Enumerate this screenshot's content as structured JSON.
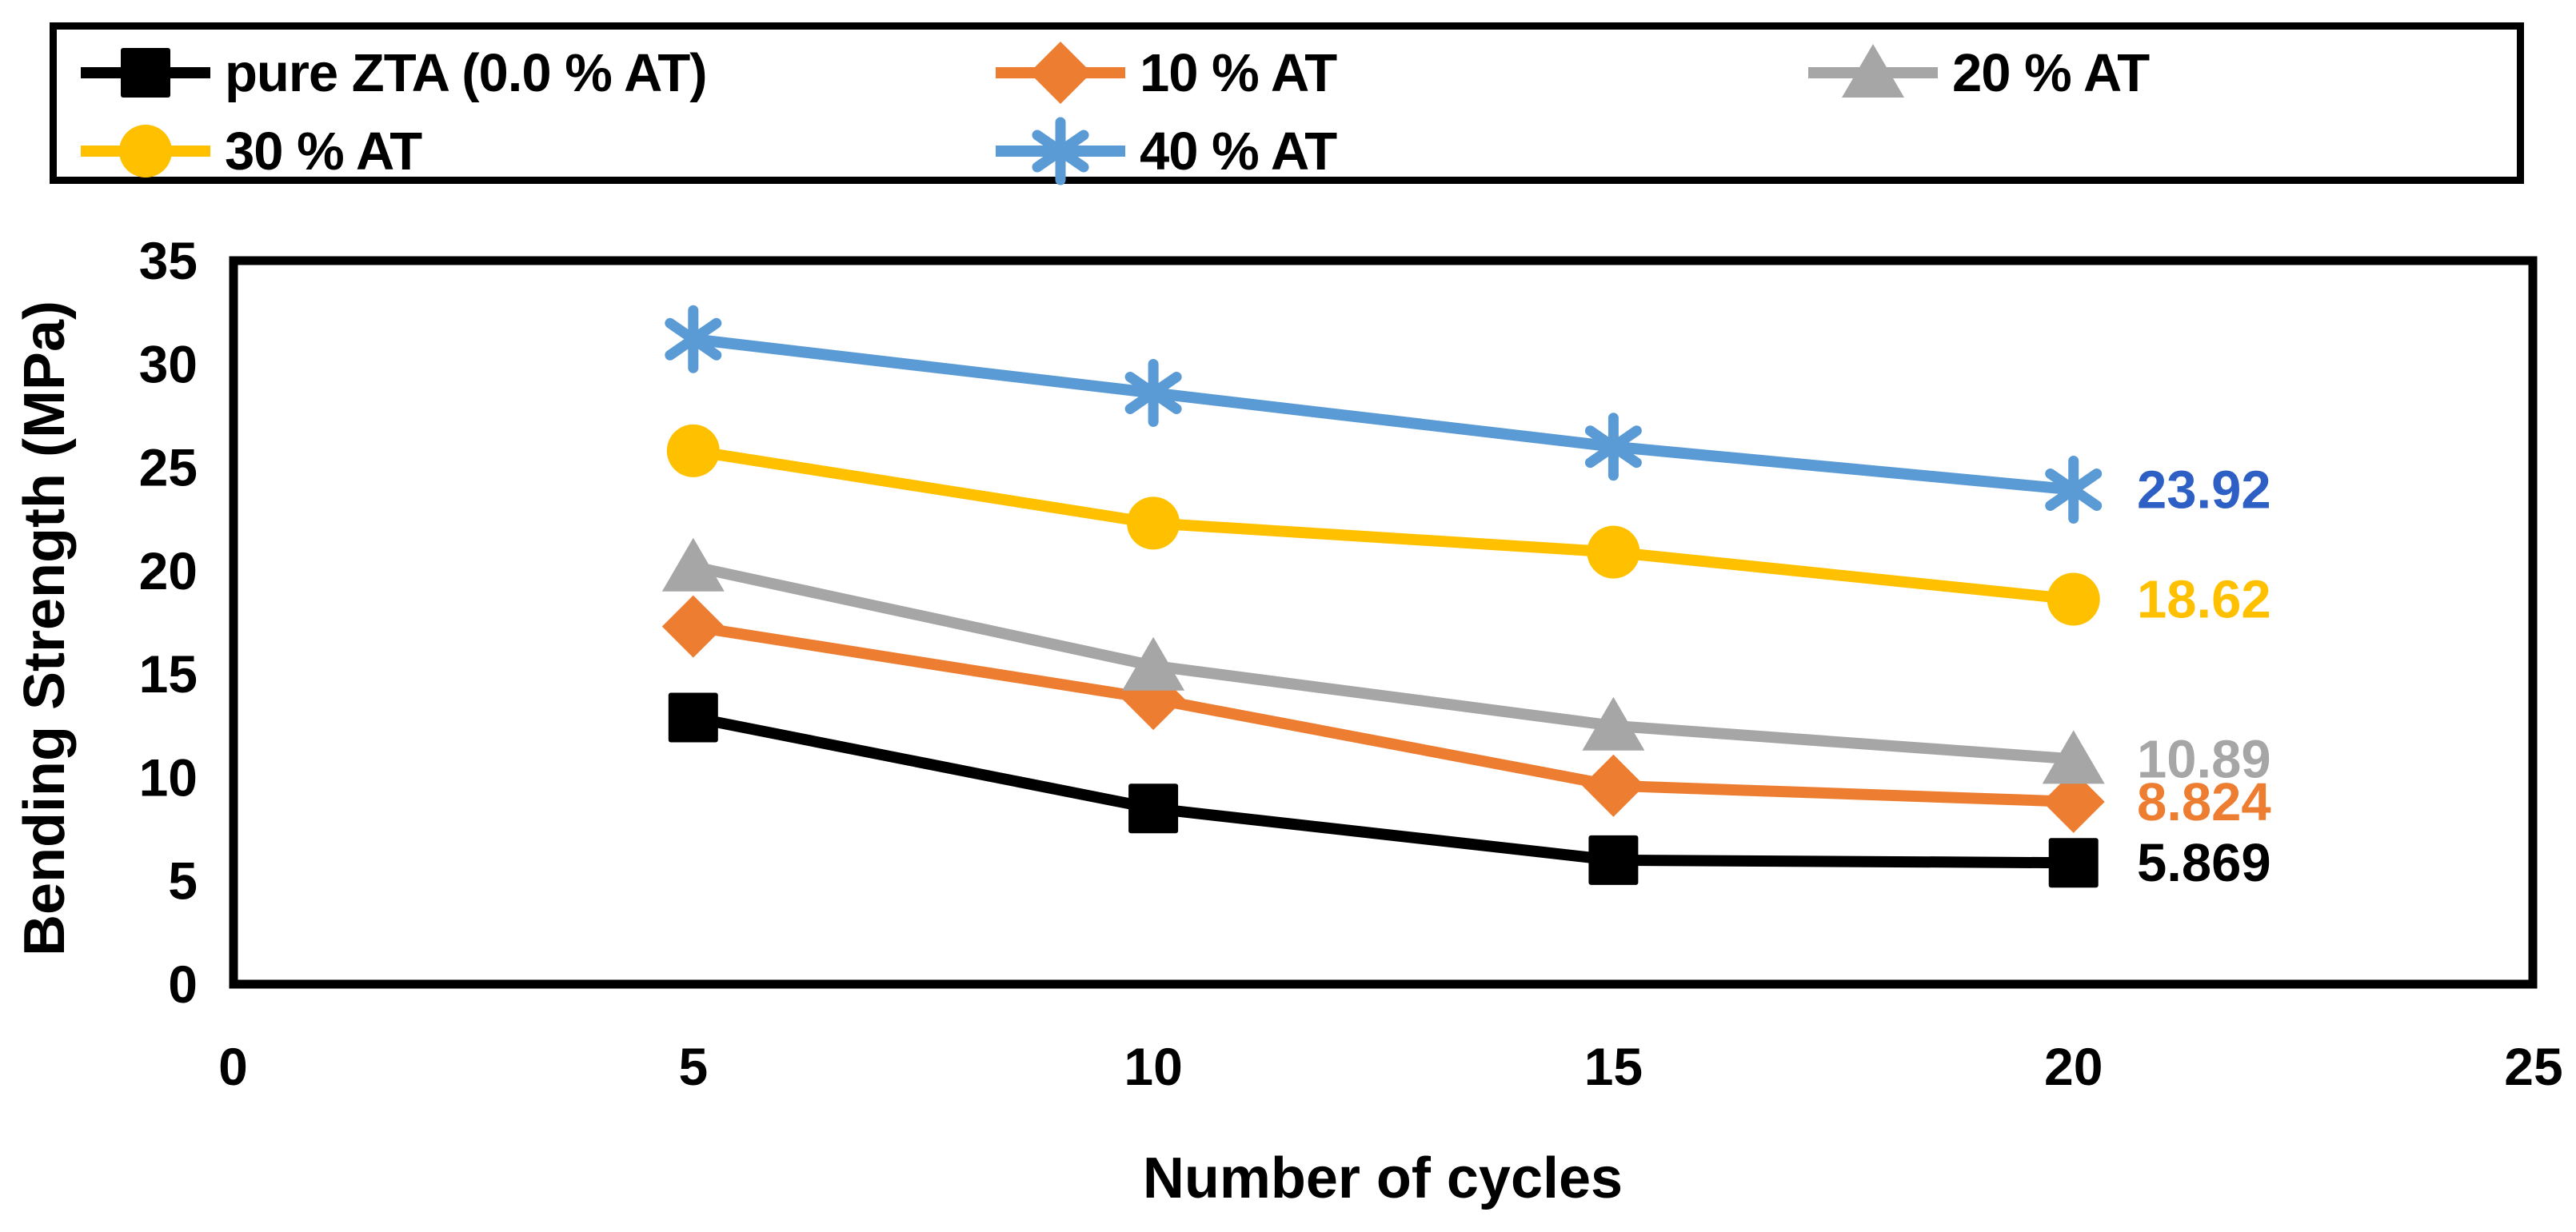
{
  "chart_data": {
    "type": "line",
    "title": "",
    "xlabel": "Number of cycles",
    "ylabel": "Bending Strength (MPa)",
    "x": [
      5,
      10,
      15,
      20
    ],
    "xlim": [
      0,
      25
    ],
    "ylim": [
      0,
      35
    ],
    "xticks": [
      "0",
      "5",
      "10",
      "15",
      "20",
      "25"
    ],
    "yticks": [
      "0",
      "5",
      "10",
      "15",
      "20",
      "25",
      "30",
      "35"
    ],
    "grid": false,
    "legend_position": "top",
    "axis_color": "#000000",
    "series": [
      {
        "name": "pure ZTA (0.0 % AT)",
        "marker": "square",
        "color": "#000000",
        "label_color": "#000000",
        "values": [
          12.9,
          8.5,
          6.0,
          5.869
        ],
        "end_label": "5.869"
      },
      {
        "name": "10 % AT",
        "marker": "diamond",
        "color": "#ED7D31",
        "label_color": "#ED7D31",
        "values": [
          17.3,
          13.8,
          9.6,
          8.824
        ],
        "end_label": "8.824"
      },
      {
        "name": "20 % AT",
        "marker": "triangle",
        "color": "#A6A6A6",
        "label_color": "#A6A6A6",
        "values": [
          20.2,
          15.4,
          12.5,
          10.89
        ],
        "end_label": "10.89"
      },
      {
        "name": "30 % AT",
        "marker": "circle",
        "color": "#FFC000",
        "label_color": "#FFC000",
        "values": [
          25.8,
          22.3,
          20.9,
          18.62
        ],
        "end_label": "18.62"
      },
      {
        "name": "40 % AT",
        "marker": "star6",
        "color": "#5B9BD5",
        "label_color": "#2E5FC4",
        "values": [
          31.2,
          28.6,
          26.0,
          23.92
        ],
        "end_label": "23.92"
      }
    ]
  }
}
